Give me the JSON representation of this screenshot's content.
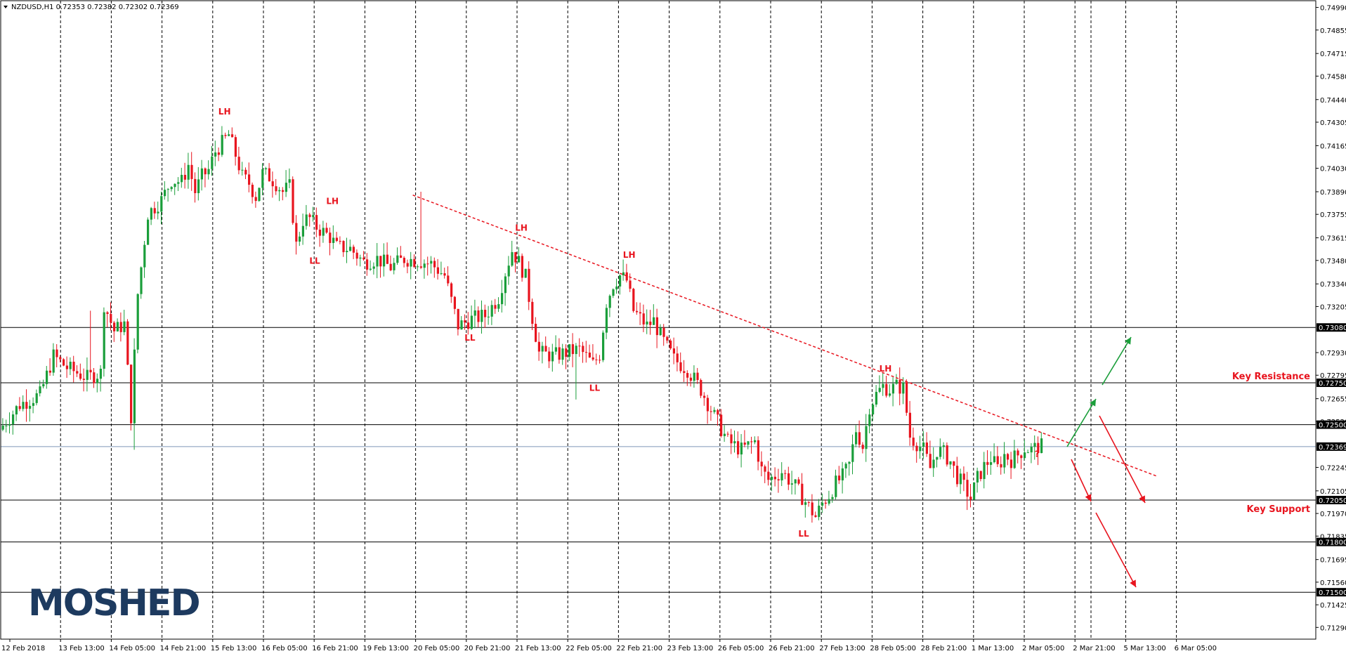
{
  "header": {
    "symbol_line": "NZDUSD,H1  0.72353 0.72382 0.72302 0.72369"
  },
  "logo": {
    "text": "MOSHED"
  },
  "colors": {
    "bull": "#1a9e3a",
    "bear": "#e8141e",
    "grid": "#000000",
    "annotation": "#e8141e",
    "up_arrow": "#1a9e3a",
    "logo": "#1d3a5f",
    "current_price_line": "#7f98b8"
  },
  "chart_data": {
    "type": "candlestick",
    "title": "",
    "xlabel": "",
    "ylabel": "",
    "ylim": [
      0.7122,
      0.7503
    ],
    "y_ticks": [
      0.7499,
      0.74855,
      0.74715,
      0.7458,
      0.7444,
      0.74305,
      0.74165,
      0.7403,
      0.7389,
      0.73755,
      0.73615,
      0.7348,
      0.7334,
      0.73205,
      0.7293,
      0.72795,
      0.72655,
      0.7252,
      0.72245,
      0.72105,
      0.7197,
      0.71835,
      0.71695,
      0.7156,
      0.71425,
      0.7129
    ],
    "y_tick_labels": [
      "0.74990",
      "0.74855",
      "0.74715",
      "0.74580",
      "0.74440",
      "0.74305",
      "0.74165",
      "0.74030",
      "0.73890",
      "0.73755",
      "0.73615",
      "0.73480",
      "0.73340",
      "0.73205",
      "0.72930",
      "0.72795",
      "0.72655",
      "0.72520",
      "0.72245",
      "0.72105",
      "0.71970",
      "0.71835",
      "0.71695",
      "0.71560",
      "0.71425",
      "0.71290"
    ],
    "x_tick_labels": [
      "12 Feb 2018",
      "13 Feb 13:00",
      "14 Feb 05:00",
      "14 Feb 21:00",
      "15 Feb 13:00",
      "16 Feb 05:00",
      "16 Feb 21:00",
      "19 Feb 13:00",
      "20 Feb 05:00",
      "20 Feb 21:00",
      "21 Feb 13:00",
      "22 Feb 05:00",
      "22 Feb 21:00",
      "23 Feb 13:00",
      "26 Feb 05:00",
      "26 Feb 21:00",
      "27 Feb 13:00",
      "28 Feb 05:00",
      "28 Feb 21:00",
      "1 Mar 13:00",
      "2 Mar 05:00",
      "2 Mar 21:00",
      "5 Mar 13:00",
      "6 Mar 05:00"
    ],
    "grid": "vertical dashed at each x tick",
    "horizontal_levels": [
      {
        "value": 0.7308,
        "label": "0.73080"
      },
      {
        "value": 0.7275,
        "label": "0.72750"
      },
      {
        "value": 0.725,
        "label": "0.72500"
      },
      {
        "value": 0.7205,
        "label": "0.72050"
      },
      {
        "value": 0.718,
        "label": "0.71800"
      },
      {
        "value": 0.715,
        "label": "0.71500"
      }
    ],
    "current_price": {
      "value": 0.72369,
      "label": "0.72369"
    },
    "price_path": [
      [
        0,
        0.7247
      ],
      [
        6,
        0.7262
      ],
      [
        12,
        0.7268
      ],
      [
        16,
        0.7291
      ],
      [
        20,
        0.7284
      ],
      [
        26,
        0.7278
      ],
      [
        30,
        0.7281
      ],
      [
        31,
        0.7322
      ],
      [
        34,
        0.7306
      ],
      [
        37,
        0.731
      ],
      [
        39,
        0.7255
      ],
      [
        41,
        0.7328
      ],
      [
        44,
        0.7376
      ],
      [
        48,
        0.7384
      ],
      [
        51,
        0.7396
      ],
      [
        54,
        0.7395
      ],
      [
        56,
        0.7405
      ],
      [
        58,
        0.7389
      ],
      [
        60,
        0.7398
      ],
      [
        62,
        0.7402
      ],
      [
        64,
        0.7413
      ],
      [
        66,
        0.7418
      ],
      [
        68,
        0.7423
      ],
      [
        70,
        0.7411
      ],
      [
        72,
        0.7398
      ],
      [
        74,
        0.7394
      ],
      [
        76,
        0.7386
      ],
      [
        78,
        0.74
      ],
      [
        80,
        0.7398
      ],
      [
        82,
        0.7394
      ],
      [
        84,
        0.7389
      ],
      [
        86,
        0.7392
      ],
      [
        88,
        0.7357
      ],
      [
        90,
        0.7372
      ],
      [
        92,
        0.7373
      ],
      [
        94,
        0.7368
      ],
      [
        96,
        0.7365
      ],
      [
        98,
        0.7362
      ],
      [
        100,
        0.7356
      ],
      [
        104,
        0.7355
      ],
      [
        108,
        0.7347
      ],
      [
        112,
        0.7349
      ],
      [
        116,
        0.7344
      ],
      [
        120,
        0.7349
      ],
      [
        124,
        0.7348
      ],
      [
        128,
        0.7346
      ],
      [
        132,
        0.7339
      ],
      [
        136,
        0.7309
      ],
      [
        140,
        0.7313
      ],
      [
        144,
        0.7315
      ],
      [
        148,
        0.7326
      ],
      [
        150,
        0.7341
      ],
      [
        152,
        0.7354
      ],
      [
        154,
        0.7347
      ],
      [
        156,
        0.7338
      ],
      [
        158,
        0.7314
      ],
      [
        160,
        0.7293
      ],
      [
        164,
        0.7291
      ],
      [
        168,
        0.7293
      ],
      [
        172,
        0.7295
      ],
      [
        176,
        0.7286
      ],
      [
        178,
        0.7292
      ],
      [
        180,
        0.7323
      ],
      [
        182,
        0.7334
      ],
      [
        184,
        0.7339
      ],
      [
        186,
        0.7336
      ],
      [
        188,
        0.7318
      ],
      [
        192,
        0.7309
      ],
      [
        194,
        0.7312
      ],
      [
        196,
        0.7303
      ],
      [
        200,
        0.7289
      ],
      [
        204,
        0.7283
      ],
      [
        208,
        0.7271
      ],
      [
        212,
        0.7255
      ],
      [
        216,
        0.724
      ],
      [
        220,
        0.7235
      ],
      [
        224,
        0.724
      ],
      [
        226,
        0.7223
      ],
      [
        228,
        0.7217
      ],
      [
        232,
        0.7222
      ],
      [
        236,
        0.7213
      ],
      [
        240,
        0.7201
      ],
      [
        242,
        0.7195
      ],
      [
        244,
        0.7203
      ],
      [
        246,
        0.7208
      ],
      [
        248,
        0.7215
      ],
      [
        250,
        0.7219
      ],
      [
        252,
        0.7226
      ],
      [
        254,
        0.7247
      ],
      [
        256,
        0.7237
      ],
      [
        258,
        0.7261
      ],
      [
        260,
        0.7268
      ],
      [
        262,
        0.7273
      ],
      [
        264,
        0.7271
      ],
      [
        266,
        0.7273
      ],
      [
        268,
        0.7272
      ],
      [
        270,
        0.7243
      ],
      [
        272,
        0.7239
      ],
      [
        274,
        0.7235
      ],
      [
        276,
        0.7224
      ],
      [
        278,
        0.7235
      ],
      [
        280,
        0.7233
      ],
      [
        282,
        0.7228
      ],
      [
        284,
        0.7219
      ],
      [
        286,
        0.7213
      ],
      [
        288,
        0.7206
      ],
      [
        290,
        0.7218
      ],
      [
        292,
        0.7225
      ],
      [
        294,
        0.723
      ],
      [
        296,
        0.7224
      ],
      [
        298,
        0.7232
      ],
      [
        300,
        0.7229
      ],
      [
        302,
        0.7232
      ],
      [
        304,
        0.7236
      ],
      [
        306,
        0.7235
      ],
      [
        308,
        0.7237
      ]
    ],
    "trendline": {
      "points": [
        [
          122,
          0.7387
        ],
        [
          343,
          0.7219
        ]
      ],
      "style": "dotted",
      "color": "#e8141e"
    },
    "swing_labels": [
      {
        "text": "LH",
        "bar": 66,
        "price": 0.74335,
        "pos": "above"
      },
      {
        "text": "LH",
        "bar": 98,
        "price": 0.738,
        "pos": "above"
      },
      {
        "text": "LL",
        "bar": 93,
        "price": 0.7352,
        "pos": "below"
      },
      {
        "text": "LH",
        "bar": 154,
        "price": 0.7364,
        "pos": "above"
      },
      {
        "text": "LL",
        "bar": 139,
        "price": 0.7306,
        "pos": "below"
      },
      {
        "text": "LL",
        "bar": 176,
        "price": 0.7276,
        "pos": "below"
      },
      {
        "text": "LH",
        "bar": 186,
        "price": 0.7348,
        "pos": "above"
      },
      {
        "text": "LL",
        "bar": 238,
        "price": 0.7189,
        "pos": "below"
      },
      {
        "text": "LH",
        "bar": 262,
        "price": 0.728,
        "pos": "above"
      }
    ],
    "annotations": [
      {
        "text": "Key Resistance",
        "value": 0.7275
      },
      {
        "text": "Key Support",
        "value": 0.7205
      },
      {
        "text": "?",
        "bar": 306
      }
    ]
  }
}
